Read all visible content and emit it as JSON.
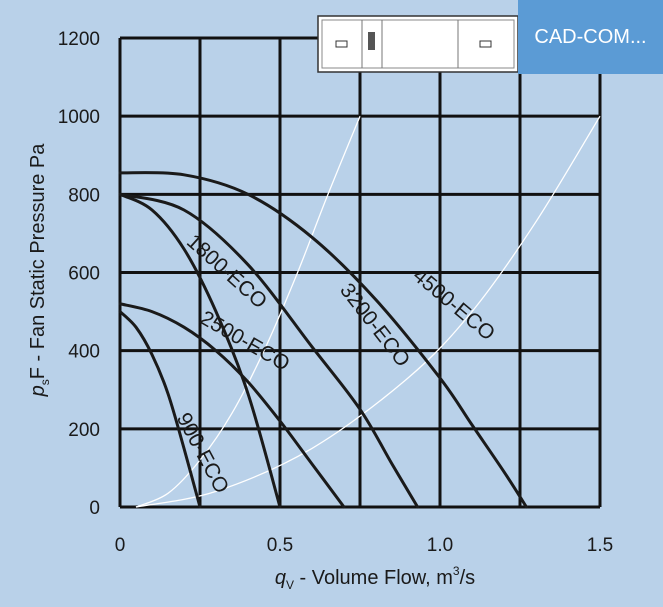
{
  "badge": {
    "label": "CAD-COM..."
  },
  "chart_data": {
    "type": "line",
    "xlabel": "q",
    "xlabel_sub": "V",
    "xlabel_rest": " - Volume Flow, m",
    "xlabel_sup": "3",
    "xlabel_end": "/s",
    "ylabel": "p",
    "ylabel_sub": "s",
    "ylabel_rest": "F - Fan Static Pressure  Pa",
    "xlim": [
      0,
      1.5
    ],
    "ylim": [
      0,
      1200
    ],
    "x_ticks": [
      {
        "value": 0,
        "label": "0"
      },
      {
        "value": 0.5,
        "label": "0.5"
      },
      {
        "value": 1.0,
        "label": "1.0"
      },
      {
        "value": 1.5,
        "label": "1.5"
      }
    ],
    "y_ticks": [
      {
        "value": 0,
        "label": "0"
      },
      {
        "value": 200,
        "label": "200"
      },
      {
        "value": 400,
        "label": "400"
      },
      {
        "value": 600,
        "label": "600"
      },
      {
        "value": 800,
        "label": "800"
      },
      {
        "value": 1000,
        "label": "1000"
      },
      {
        "value": 1200,
        "label": "1200"
      }
    ],
    "grid_x": [
      0,
      0.25,
      0.5,
      0.75,
      1.0,
      1.25,
      1.5
    ],
    "grid_y": [
      0,
      200,
      400,
      600,
      800,
      1000,
      1200
    ],
    "grid": true,
    "series": [
      {
        "name": "900-ECO",
        "color": "#1a1a1a",
        "x": [
          0,
          0.05,
          0.1,
          0.15,
          0.2,
          0.25
        ],
        "y": [
          500,
          460,
          390,
          290,
          150,
          0
        ],
        "label_at": [
          0.24,
          130
        ],
        "label_angle": 62
      },
      {
        "name": "1800-ECO",
        "color": "#1a1a1a",
        "x": [
          0,
          0.1,
          0.2,
          0.3,
          0.4,
          0.5
        ],
        "y": [
          800,
          760,
          660,
          500,
          290,
          0
        ],
        "label_at": [
          0.32,
          590
        ],
        "label_angle": 42
      },
      {
        "name": "2500-ECO",
        "color": "#1a1a1a",
        "x": [
          0,
          0.1,
          0.2,
          0.3,
          0.4,
          0.5,
          0.6,
          0.7
        ],
        "y": [
          520,
          500,
          460,
          400,
          320,
          220,
          110,
          0
        ],
        "label_at": [
          0.38,
          410
        ],
        "label_angle": 30
      },
      {
        "name": "3200-ECO",
        "color": "#1a1a1a",
        "x": [
          0,
          0.2,
          0.4,
          0.6,
          0.75,
          0.85,
          0.93
        ],
        "y": [
          800,
          760,
          620,
          410,
          250,
          110,
          0
        ],
        "label_at": [
          0.78,
          455
        ],
        "label_angle": 52
      },
      {
        "name": "4500-ECO",
        "color": "#1a1a1a",
        "x": [
          0,
          0.2,
          0.4,
          0.6,
          0.8,
          1.0,
          1.1,
          1.2,
          1.27
        ],
        "y": [
          855,
          850,
          800,
          690,
          530,
          330,
          210,
          90,
          0
        ],
        "label_at": [
          1.03,
          505
        ],
        "label_angle": 40
      }
    ],
    "system_curves": [
      {
        "color": "#ffffff",
        "x": [
          0.05,
          0.15,
          0.25,
          0.35,
          0.45,
          0.55,
          0.65,
          0.75
        ],
        "y": [
          0,
          35,
          120,
          240,
          400,
          590,
          800,
          1000
        ]
      },
      {
        "color": "#ffffff",
        "x": [
          0.05,
          0.3,
          0.6,
          0.9,
          1.1,
          1.3,
          1.5
        ],
        "y": [
          0,
          40,
          150,
          330,
          500,
          730,
          1000
        ]
      }
    ]
  }
}
